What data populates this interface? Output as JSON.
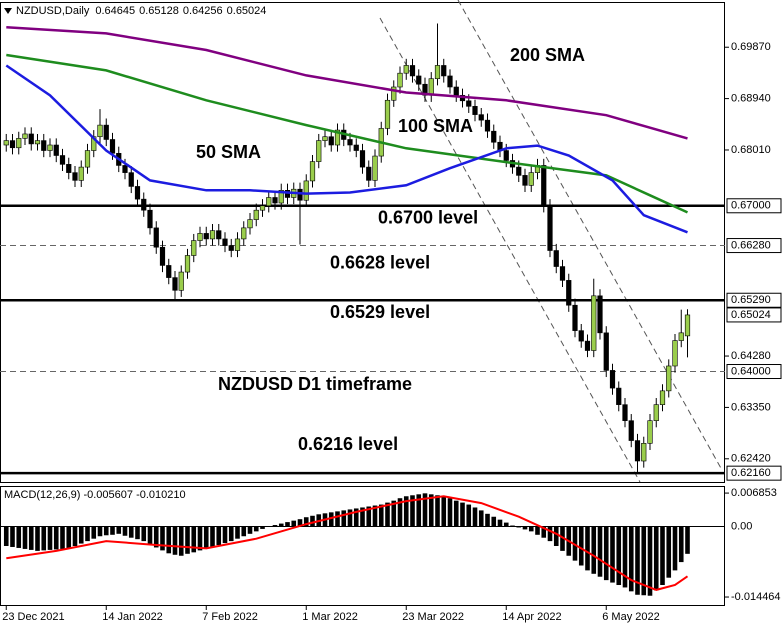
{
  "chart_data": [
    {
      "type": "candlestick",
      "symbol": "NZDUSD,Daily",
      "open": [
        0.681,
        0.6818,
        0.6805,
        0.6822,
        0.683,
        0.6812,
        0.6818,
        0.68,
        0.681,
        0.6791,
        0.6775,
        0.676,
        0.6746,
        0.677,
        0.68,
        0.6825,
        0.6846,
        0.682,
        0.6795,
        0.6773,
        0.676,
        0.6735,
        0.6712,
        0.6692,
        0.666,
        0.6625,
        0.6592,
        0.657,
        0.6547,
        0.658,
        0.661,
        0.6637,
        0.665,
        0.664,
        0.6655,
        0.664,
        0.6628,
        0.6619,
        0.664,
        0.666,
        0.6675,
        0.6692,
        0.67,
        0.6715,
        0.6705,
        0.6728,
        0.6715,
        0.673,
        0.671,
        0.6745,
        0.678,
        0.6818,
        0.6825,
        0.681,
        0.6837,
        0.682,
        0.681,
        0.68,
        0.677,
        0.6746,
        0.679,
        0.684,
        0.6891,
        0.6915,
        0.694,
        0.6954,
        0.6935,
        0.692,
        0.69,
        0.693,
        0.6954,
        0.6935,
        0.6915,
        0.69,
        0.689,
        0.688,
        0.6865,
        0.6855,
        0.6835,
        0.6815,
        0.68,
        0.6782,
        0.677,
        0.6755,
        0.6737,
        0.676,
        0.6773,
        0.67,
        0.6619,
        0.659,
        0.6565,
        0.652,
        0.6474,
        0.6455,
        0.6438,
        0.6537,
        0.647,
        0.6402,
        0.637,
        0.634,
        0.6311,
        0.6275,
        0.6238,
        0.627,
        0.6311,
        0.634,
        0.6365,
        0.641,
        0.6456,
        0.64645
      ],
      "high": [
        0.683,
        0.683,
        0.6834,
        0.6842,
        0.6842,
        0.683,
        0.683,
        0.6822,
        0.6822,
        0.6803,
        0.6787,
        0.6772,
        0.6782,
        0.6812,
        0.6837,
        0.6875,
        0.6858,
        0.6832,
        0.6807,
        0.6785,
        0.6772,
        0.6747,
        0.6724,
        0.6704,
        0.6672,
        0.6637,
        0.6604,
        0.6582,
        0.6592,
        0.6622,
        0.6649,
        0.6662,
        0.6662,
        0.6667,
        0.6667,
        0.6652,
        0.664,
        0.6652,
        0.6672,
        0.6687,
        0.6704,
        0.6712,
        0.6727,
        0.6727,
        0.674,
        0.674,
        0.6742,
        0.6742,
        0.6757,
        0.6792,
        0.683,
        0.6837,
        0.6837,
        0.6849,
        0.6849,
        0.6832,
        0.6822,
        0.6812,
        0.6782,
        0.6802,
        0.6852,
        0.6903,
        0.6927,
        0.6952,
        0.6966,
        0.6966,
        0.6947,
        0.6932,
        0.6942,
        0.703,
        0.6966,
        0.6947,
        0.6927,
        0.6912,
        0.6902,
        0.6892,
        0.6877,
        0.6867,
        0.6847,
        0.6827,
        0.6812,
        0.6794,
        0.6782,
        0.6767,
        0.6772,
        0.6785,
        0.6785,
        0.6712,
        0.6631,
        0.6602,
        0.6577,
        0.6532,
        0.6486,
        0.6467,
        0.6568,
        0.6549,
        0.6482,
        0.6414,
        0.6382,
        0.6352,
        0.6323,
        0.6287,
        0.6282,
        0.6323,
        0.6352,
        0.6377,
        0.6422,
        0.6468,
        0.6512,
        0.65128
      ],
      "low": [
        0.6798,
        0.6793,
        0.6793,
        0.681,
        0.68,
        0.68,
        0.6788,
        0.6788,
        0.6779,
        0.6763,
        0.6748,
        0.6734,
        0.6734,
        0.6758,
        0.6788,
        0.6813,
        0.6808,
        0.6783,
        0.6761,
        0.6748,
        0.6723,
        0.67,
        0.668,
        0.6648,
        0.6613,
        0.658,
        0.6558,
        0.653,
        0.6535,
        0.6568,
        0.6598,
        0.6625,
        0.6628,
        0.6628,
        0.6628,
        0.6616,
        0.6607,
        0.6607,
        0.6628,
        0.6648,
        0.6663,
        0.668,
        0.6688,
        0.6693,
        0.6693,
        0.6703,
        0.6703,
        0.663,
        0.6698,
        0.6733,
        0.6768,
        0.6806,
        0.6798,
        0.6798,
        0.6808,
        0.6798,
        0.6788,
        0.6758,
        0.6734,
        0.6734,
        0.6778,
        0.6828,
        0.6879,
        0.6903,
        0.6928,
        0.6923,
        0.6908,
        0.6888,
        0.6888,
        0.6918,
        0.6923,
        0.6903,
        0.6888,
        0.6878,
        0.6868,
        0.6853,
        0.6843,
        0.6823,
        0.6803,
        0.6788,
        0.677,
        0.6758,
        0.6743,
        0.6725,
        0.6725,
        0.6748,
        0.6688,
        0.6607,
        0.6578,
        0.6553,
        0.6508,
        0.6462,
        0.6443,
        0.6426,
        0.6426,
        0.6458,
        0.639,
        0.6358,
        0.6328,
        0.6299,
        0.6263,
        0.6216,
        0.6226,
        0.6258,
        0.6299,
        0.6328,
        0.6353,
        0.6398,
        0.6444,
        0.64256
      ],
      "close": [
        0.6818,
        0.6805,
        0.6822,
        0.683,
        0.6812,
        0.6818,
        0.68,
        0.681,
        0.6791,
        0.6775,
        0.676,
        0.6746,
        0.677,
        0.68,
        0.6825,
        0.6846,
        0.682,
        0.6795,
        0.6773,
        0.676,
        0.6735,
        0.6712,
        0.6692,
        0.666,
        0.6625,
        0.6592,
        0.657,
        0.6547,
        0.658,
        0.661,
        0.6637,
        0.665,
        0.664,
        0.6655,
        0.664,
        0.6628,
        0.6619,
        0.664,
        0.666,
        0.6675,
        0.6692,
        0.67,
        0.6715,
        0.6705,
        0.6728,
        0.6715,
        0.673,
        0.671,
        0.6745,
        0.678,
        0.6818,
        0.6825,
        0.681,
        0.6837,
        0.682,
        0.681,
        0.68,
        0.677,
        0.6746,
        0.679,
        0.684,
        0.6891,
        0.6915,
        0.694,
        0.6954,
        0.6935,
        0.692,
        0.69,
        0.693,
        0.6954,
        0.6935,
        0.6915,
        0.69,
        0.689,
        0.688,
        0.6865,
        0.6855,
        0.6835,
        0.6815,
        0.68,
        0.6782,
        0.677,
        0.6755,
        0.6737,
        0.676,
        0.6773,
        0.67,
        0.6619,
        0.659,
        0.6565,
        0.652,
        0.6474,
        0.6455,
        0.6438,
        0.6537,
        0.647,
        0.6402,
        0.637,
        0.634,
        0.6311,
        0.6275,
        0.6238,
        0.627,
        0.6311,
        0.634,
        0.6365,
        0.641,
        0.6456,
        0.647,
        0.65024
      ],
      "up_color": "#9acd4c",
      "down_color": "#000000",
      "xlim": [
        -1,
        115
      ],
      "xticks": [
        {
          "value": 0,
          "label": "23 Dec 2021"
        },
        {
          "value": 16,
          "label": "14 Jan 2022"
        },
        {
          "value": 32,
          "label": "7 Feb 2022"
        },
        {
          "value": 48,
          "label": "1 Mar 2022"
        },
        {
          "value": 64,
          "label": "23 Mar 2022"
        },
        {
          "value": 80,
          "label": "14 Apr 2022"
        },
        {
          "value": 96,
          "label": "6 May 2022"
        }
      ],
      "ylim": [
        0.62,
        0.7058
      ],
      "yticks": [
        {
          "value": 0.6987,
          "label": "0.69870"
        },
        {
          "value": 0.6894,
          "label": "0.68940"
        },
        {
          "value": 0.6801,
          "label": "0.68010"
        },
        {
          "value": 0.6428,
          "label": "0.64280"
        },
        {
          "value": 0.6335,
          "label": "0.63350"
        },
        {
          "value": 0.6242,
          "label": "0.62420"
        }
      ],
      "series": [
        {
          "name": "200 SMA",
          "color": "#800080",
          "x": [
            0,
            16,
            32,
            48,
            64,
            80,
            96,
            109
          ],
          "values": [
            0.7023,
            0.7012,
            0.6982,
            0.6936,
            0.6905,
            0.6891,
            0.6864,
            0.6822
          ]
        },
        {
          "name": "100 SMA",
          "color": "#1e8c1e",
          "x": [
            0,
            16,
            32,
            48,
            64,
            80,
            96,
            103,
            109
          ],
          "values": [
            0.6973,
            0.6945,
            0.6891,
            0.6846,
            0.6804,
            0.6779,
            0.6755,
            0.6719,
            0.6688
          ]
        },
        {
          "name": "50 SMA",
          "color": "#1c1ce0",
          "x": [
            0,
            7,
            16,
            23,
            32,
            39,
            48,
            55,
            64,
            71,
            80,
            85,
            90,
            97,
            102,
            109
          ],
          "values": [
            0.6954,
            0.69,
            0.68,
            0.6746,
            0.6728,
            0.6728,
            0.6722,
            0.6724,
            0.6737,
            0.6768,
            0.6804,
            0.6809,
            0.6791,
            0.6746,
            0.6683,
            0.6652
          ]
        }
      ],
      "levels": [
        {
          "value": 0.67,
          "label": "0.67000",
          "text": "0.6700 level",
          "dashed": false
        },
        {
          "value": 0.6628,
          "label": "0.66280",
          "text": "0.6628 level",
          "dashed": true
        },
        {
          "value": 0.6529,
          "label": "0.65290",
          "text": "0.6529 level",
          "dashed": false
        },
        {
          "value": 0.64,
          "label": "0.64000",
          "dashed": true
        },
        {
          "value": 0.6216,
          "label": "0.62160",
          "text": "0.6216 level",
          "dashed": false
        }
      ],
      "annotation": "NZDUSD D1 timeframe"
    },
    {
      "type": "macd",
      "title": "MACD(12,26,9) -0.005607 -0.010210",
      "ylim": [
        -0.0161,
        0.0081
      ],
      "yticks": [
        0.006853,
        {
          "value": 0,
          "label": "0.00"
        },
        -0.014464
      ],
      "histogram": {
        "color": "#000000",
        "values": [
          -0.004,
          -0.0042,
          -0.0044,
          -0.0046,
          -0.0048,
          -0.005,
          -0.0049,
          -0.0048,
          -0.0047,
          -0.0046,
          -0.0045,
          -0.004,
          -0.0035,
          -0.003,
          -0.0025,
          -0.002,
          -0.0018,
          -0.0017,
          -0.0015,
          -0.0019,
          -0.0023,
          -0.0026,
          -0.003,
          -0.0036,
          -0.0043,
          -0.0049,
          -0.0055,
          -0.0058,
          -0.006,
          -0.0056,
          -0.0053,
          -0.0049,
          -0.0045,
          -0.0041,
          -0.0038,
          -0.0034,
          -0.003,
          -0.0025,
          -0.002,
          -0.0015,
          -0.001,
          -0.0005,
          0.0,
          0.0003,
          0.0006,
          0.0009,
          0.0012,
          0.0015,
          0.0019,
          0.0022,
          0.0025,
          0.0027,
          0.0029,
          0.0031,
          0.0033,
          0.0035,
          0.0037,
          0.0039,
          0.0041,
          0.0043,
          0.0045,
          0.0049,
          0.0053,
          0.0058,
          0.0062,
          0.0064,
          0.0066,
          0.0068,
          0.0066,
          0.0064,
          0.0062,
          0.0058,
          0.0053,
          0.0049,
          0.0045,
          0.0039,
          0.0033,
          0.0026,
          0.002,
          0.0014,
          0.0008,
          0.0002,
          -0.0002,
          -0.0006,
          -0.001,
          -0.0017,
          -0.0023,
          -0.003,
          -0.004,
          -0.005,
          -0.006,
          -0.007,
          -0.008,
          -0.009,
          -0.0097,
          -0.0103,
          -0.011,
          -0.0115,
          -0.012,
          -0.0125,
          -0.0133,
          -0.014,
          -0.0141,
          -0.0142,
          -0.0131,
          -0.012,
          -0.0105,
          -0.009,
          -0.0073,
          -0.005607
        ]
      },
      "signal": {
        "color": "#ff0000",
        "x": [
          0,
          8,
          16,
          24,
          32,
          40,
          48,
          56,
          64,
          70,
          76,
          82,
          88,
          94,
          100,
          104,
          107,
          109
        ],
        "values": [
          -0.0065,
          -0.005,
          -0.003,
          -0.0038,
          -0.0045,
          -0.0025,
          0.0005,
          0.003,
          0.0052,
          0.0062,
          0.0048,
          0.002,
          -0.0015,
          -0.006,
          -0.011,
          -0.013,
          -0.012,
          -0.01021
        ]
      }
    }
  ]
}
